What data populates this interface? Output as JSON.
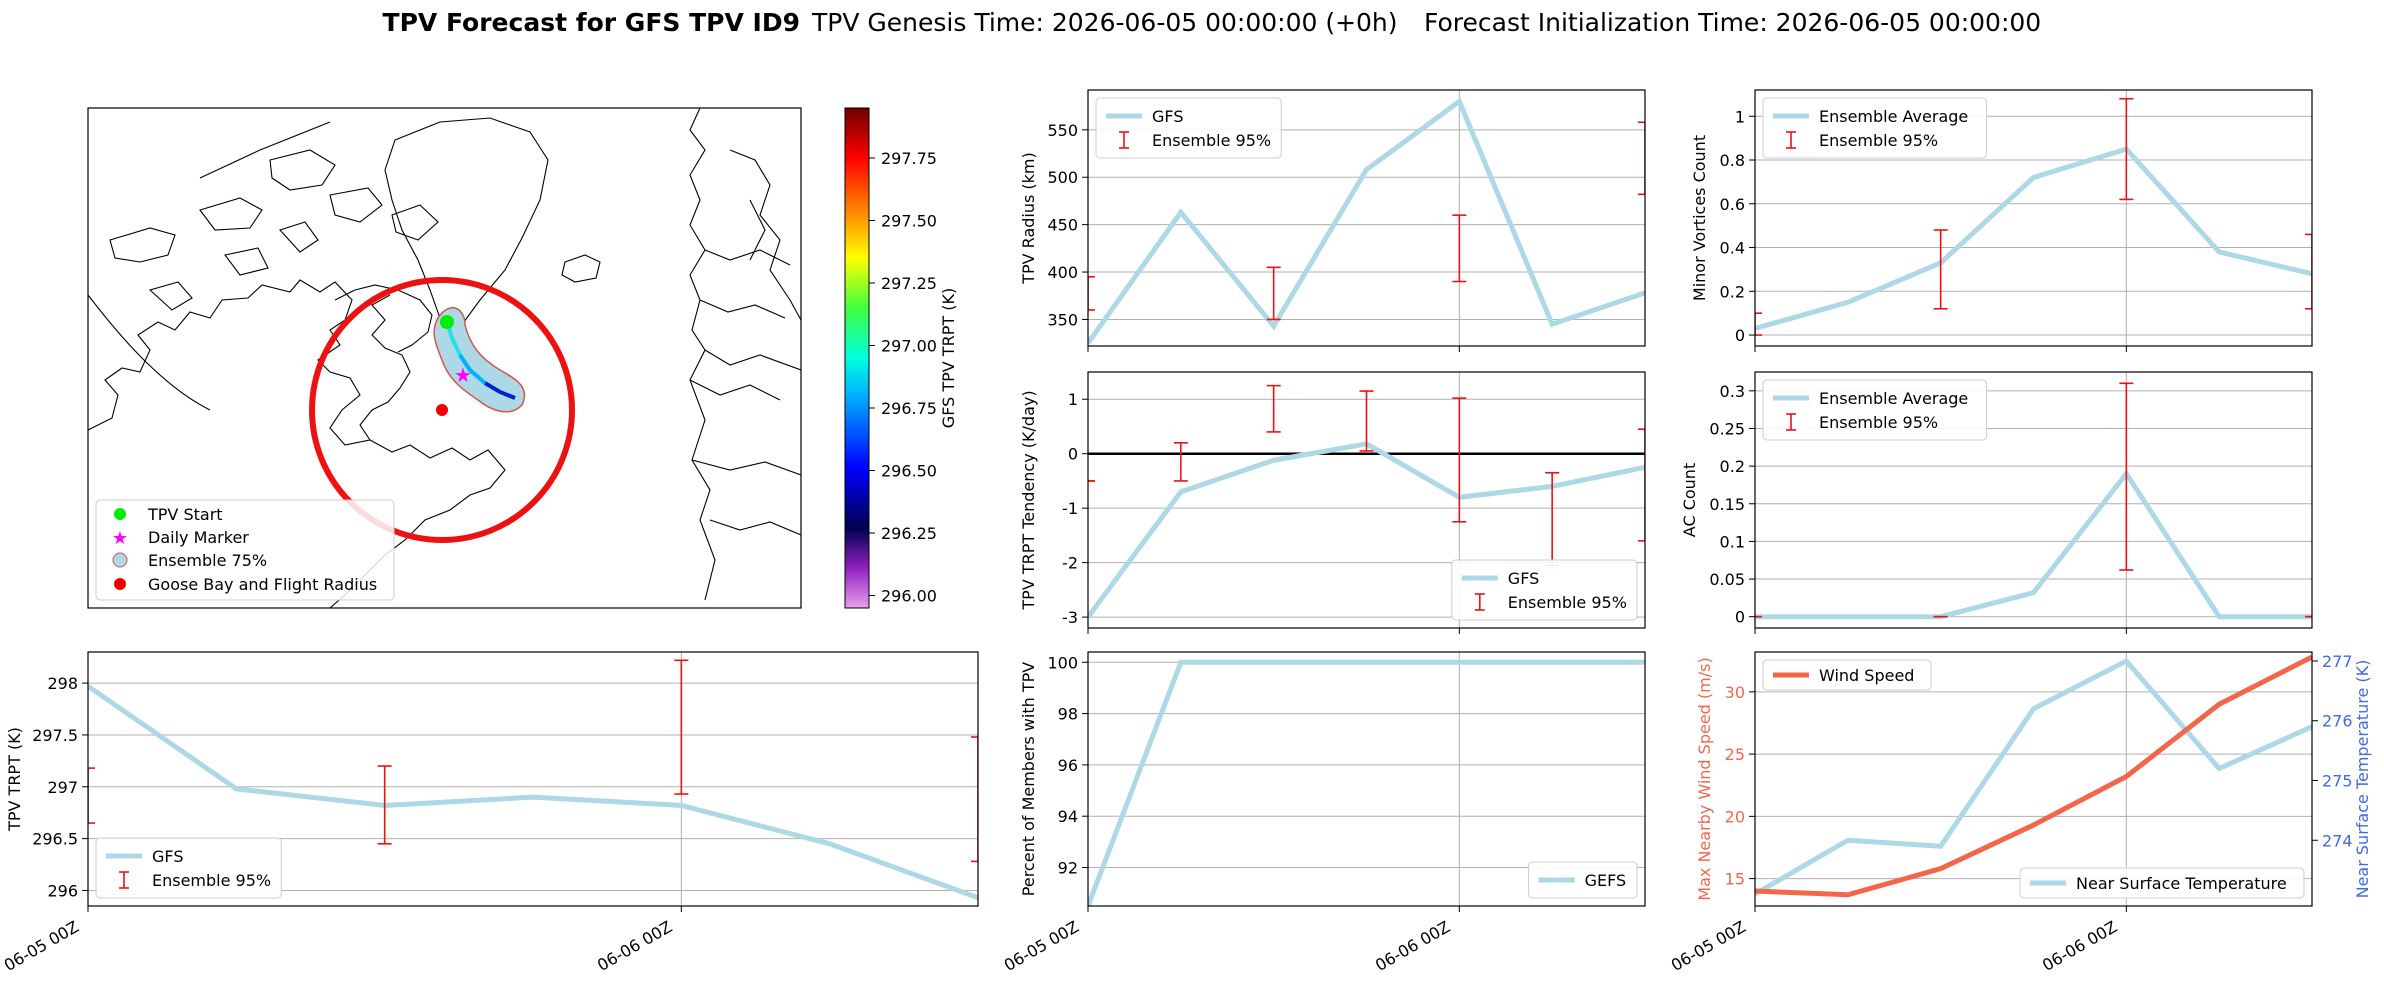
{
  "figure": {
    "title_bold": "TPV Forecast for GFS TPV ID9",
    "title_genesis": "TPV Genesis Time: 2026-06-05 00:00:00 (+0h)",
    "title_init": "Forecast Initialization Time: 2026-06-05 00:00:00"
  },
  "map": {
    "colorbar_label": "GFS TPV TRPT (K)",
    "colorbar_ticks": [
      "296.00",
      "296.25",
      "296.50",
      "296.75",
      "297.00",
      "297.25",
      "297.50",
      "297.75"
    ],
    "colorbar_range": [
      295.95,
      297.95
    ],
    "legend": [
      "TPV Start",
      "Daily Marker",
      "Ensemble 75%",
      "Goose Bay and Flight Radius"
    ],
    "colors": {
      "start": "#00ee00",
      "daily": "#ff00ff",
      "ensemble": "#add8e6",
      "goose_bay": "#ee0000"
    }
  },
  "time_axis": {
    "ticks": [
      {
        "x": 0,
        "label": "06-05 00Z"
      },
      {
        "x": 4,
        "label": "06-06 00Z"
      }
    ]
  },
  "chart_data": [
    {
      "id": "radius",
      "type": "line",
      "ylabel": "TPV Radius (km)",
      "ylim": [
        322,
        592
      ],
      "xlim": [
        0,
        6
      ],
      "yticks": [
        350,
        400,
        450,
        500,
        550
      ],
      "x": [
        0,
        1,
        2,
        3,
        4,
        5,
        6
      ],
      "series": [
        {
          "name": "GFS",
          "values": [
            325,
            463,
            343,
            508,
            580,
            345,
            378
          ]
        }
      ],
      "errorbars": [
        {
          "x": 0,
          "low": 360,
          "high": 395
        },
        {
          "x": 2,
          "low": 350,
          "high": 405
        },
        {
          "x": 4,
          "low": 390,
          "high": 460
        },
        {
          "x": 6,
          "low": 482,
          "high": 558
        }
      ],
      "legend": [
        "GFS",
        "Ensemble 95%"
      ],
      "legend_loc": "upper-left"
    },
    {
      "id": "minor",
      "type": "line",
      "ylabel": "Minor Vortices Count",
      "ylim": [
        -0.05,
        1.12
      ],
      "xlim": [
        0,
        6
      ],
      "yticks": [
        0.0,
        0.2,
        0.4,
        0.6,
        0.8,
        1.0
      ],
      "x": [
        0,
        1,
        2,
        3,
        4,
        5,
        6
      ],
      "series": [
        {
          "name": "Ensemble Average",
          "values": [
            0.03,
            0.15,
            0.33,
            0.72,
            0.85,
            0.38,
            0.28
          ]
        }
      ],
      "errorbars": [
        {
          "x": 0,
          "low": 0.0,
          "high": 0.1
        },
        {
          "x": 2,
          "low": 0.12,
          "high": 0.48
        },
        {
          "x": 4,
          "low": 0.62,
          "high": 1.08
        },
        {
          "x": 6,
          "low": 0.12,
          "high": 0.46
        }
      ],
      "legend": [
        "Ensemble Average",
        "Ensemble 95%"
      ],
      "legend_loc": "upper-left"
    },
    {
      "id": "tendency",
      "type": "line",
      "ylabel": "TPV TRPT Tendency (K/day)",
      "ylim": [
        -3.2,
        1.5
      ],
      "xlim": [
        0,
        6
      ],
      "yticks": [
        -3,
        -2,
        -1,
        0,
        1
      ],
      "x": [
        0,
        1,
        2,
        3,
        4,
        5,
        6
      ],
      "series": [
        {
          "name": "GFS",
          "values": [
            -3.0,
            -0.7,
            -0.12,
            0.18,
            -0.8,
            -0.6,
            -0.25
          ]
        }
      ],
      "errorbars": [
        {
          "x": 0,
          "low": -0.5,
          "high": -0.5
        },
        {
          "x": 1,
          "low": -0.5,
          "high": 0.2
        },
        {
          "x": 2,
          "low": 0.4,
          "high": 1.25
        },
        {
          "x": 3,
          "low": 0.05,
          "high": 1.15
        },
        {
          "x": 4,
          "low": -1.25,
          "high": 1.02
        },
        {
          "x": 5,
          "low": -2.05,
          "high": -0.35
        },
        {
          "x": 6,
          "low": -1.6,
          "high": 0.45
        }
      ],
      "zero_line": true,
      "legend": [
        "GFS",
        "Ensemble 95%"
      ],
      "legend_loc": "lower-right"
    },
    {
      "id": "ac",
      "type": "line",
      "ylabel": "AC Count",
      "ylim": [
        -0.015,
        0.325
      ],
      "xlim": [
        0,
        6
      ],
      "yticks": [
        0.0,
        0.05,
        0.1,
        0.15,
        0.2,
        0.25,
        0.3
      ],
      "x": [
        0,
        1,
        2,
        3,
        4,
        5,
        6
      ],
      "series": [
        {
          "name": "Ensemble Average",
          "values": [
            0.0,
            0.0,
            0.0,
            0.032,
            0.19,
            0.0,
            0.0
          ]
        }
      ],
      "errorbars": [
        {
          "x": 0,
          "low": 0.0,
          "high": 0.0
        },
        {
          "x": 2,
          "low": 0.0,
          "high": 0.0
        },
        {
          "x": 4,
          "low": 0.062,
          "high": 0.31
        },
        {
          "x": 6,
          "low": 0.0,
          "high": 0.0
        }
      ],
      "legend": [
        "Ensemble Average",
        "Ensemble 95%"
      ],
      "legend_loc": "upper-left"
    },
    {
      "id": "trpt",
      "type": "line",
      "ylabel": "TPV TRPT (K)",
      "ylim": [
        295.85,
        298.3
      ],
      "xlim": [
        0,
        6
      ],
      "yticks": [
        296.0,
        296.5,
        297.0,
        297.5,
        298.0
      ],
      "x": [
        0,
        1,
        2,
        3,
        4,
        5,
        6
      ],
      "series": [
        {
          "name": "GFS",
          "values": [
            297.97,
            296.98,
            296.82,
            296.9,
            296.82,
            296.45,
            295.93
          ]
        }
      ],
      "errorbars": [
        {
          "x": 0,
          "low": 296.65,
          "high": 297.18
        },
        {
          "x": 2,
          "low": 296.45,
          "high": 297.2
        },
        {
          "x": 4,
          "low": 296.93,
          "high": 298.22
        },
        {
          "x": 6,
          "low": 296.28,
          "high": 297.48
        }
      ],
      "legend": [
        "GFS",
        "Ensemble 95%"
      ],
      "legend_loc": "lower-left"
    },
    {
      "id": "members",
      "type": "line",
      "ylabel": "Percent of Members with TPV",
      "ylim": [
        90.5,
        100.4
      ],
      "xlim": [
        0,
        6
      ],
      "yticks": [
        92,
        94,
        96,
        98,
        100
      ],
      "x": [
        0,
        1,
        2,
        3,
        4,
        5,
        6
      ],
      "series": [
        {
          "name": "GEFS",
          "values": [
            90.5,
            100,
            100,
            100,
            100,
            100,
            100
          ]
        }
      ],
      "legend": [
        "GEFS"
      ],
      "legend_loc": "lower-right"
    },
    {
      "id": "wind",
      "type": "line",
      "ylabel": "Max Nearby Wind Speed (m/s)",
      "ylim": [
        12.8,
        33.2
      ],
      "xlim": [
        0,
        6
      ],
      "yticks": [
        15,
        20,
        25,
        30
      ],
      "x": [
        0,
        1,
        2,
        3,
        4,
        5,
        6
      ],
      "series": [
        {
          "name": "Wind Speed",
          "axis": "left",
          "values": [
            14.0,
            13.7,
            15.8,
            19.3,
            23.2,
            29.0,
            32.8
          ]
        },
        {
          "name": "Near Surface Temperature",
          "axis": "right",
          "values": [
            273.1,
            274.0,
            273.9,
            276.2,
            277.0,
            275.2,
            275.9
          ]
        }
      ],
      "y2label": "Near Surface Temperature (K)",
      "y2lim": [
        272.9,
        277.15
      ],
      "y2ticks": [
        274,
        275,
        276,
        277
      ],
      "legend": [
        "Wind Speed",
        "Near Surface Temperature"
      ],
      "colors": {
        "wind": "#f4664a",
        "temp": "#add8e6",
        "right_axis": "#4169e1"
      }
    }
  ]
}
